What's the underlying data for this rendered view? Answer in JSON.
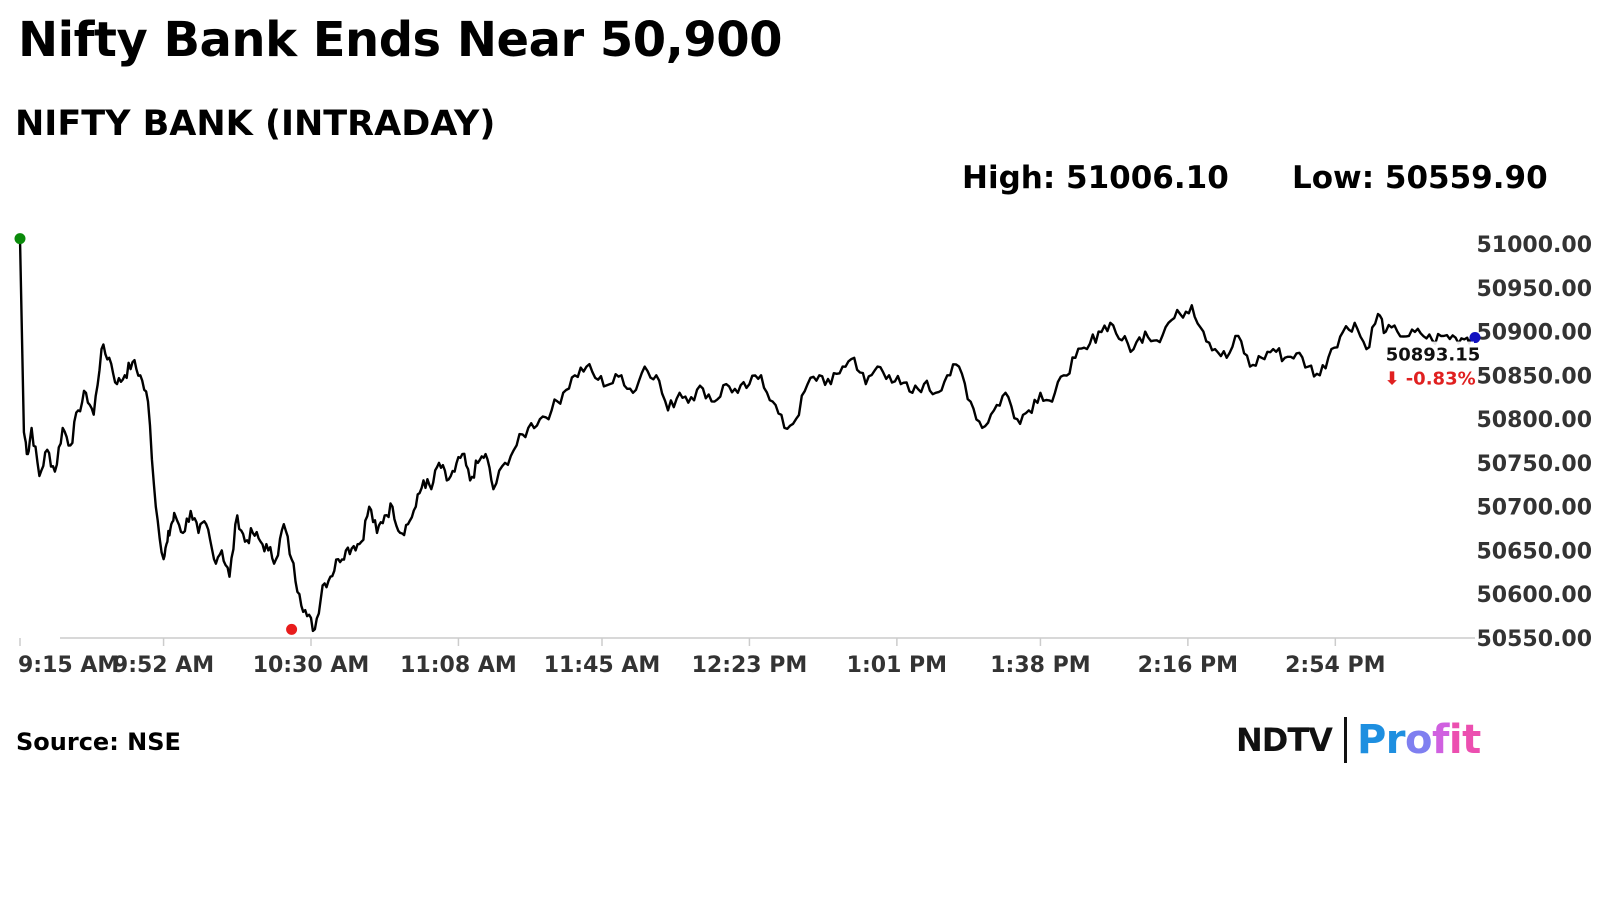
{
  "header": {
    "headline": "Nifty Bank Ends Near 50,900",
    "subtitle": "NIFTY BANK (INTRADAY)",
    "high_text": "High: 51006.10",
    "low_text": "Low: 50559.90"
  },
  "footer": {
    "source": "Source: NSE",
    "logo_ndtv": "NDTV",
    "logo_profit": "Profit"
  },
  "colors": {
    "line": "#000000",
    "high_marker": "#0a8a0a",
    "low_marker": "#e81c1c",
    "last_marker": "#1010c0",
    "change_text": "#e02020",
    "axis": "#cccccc"
  },
  "chart_data": {
    "type": "line",
    "title": "NIFTY BANK (INTRADAY)",
    "ylim": [
      50550,
      51000
    ],
    "y_ticks": [
      "51000.00",
      "50950.00",
      "50900.00",
      "50850.00",
      "50800.00",
      "50750.00",
      "50700.00",
      "50650.00",
      "50600.00",
      "50550.00"
    ],
    "x_ticks": [
      "9:15 AM",
      "9:52 AM",
      "10:30 AM",
      "11:08 AM",
      "11:45 AM",
      "12:23 PM",
      "1:01 PM",
      "1:38 PM",
      "2:16 PM",
      "2:54 PM"
    ],
    "x_tick_minutes": [
      555,
      592,
      630,
      668,
      705,
      743,
      781,
      818,
      856,
      894
    ],
    "xlim_minutes": [
      555,
      930
    ],
    "high": {
      "minute": 555,
      "value": 51006.1
    },
    "low": {
      "minute": 625,
      "value": 50559.9
    },
    "last": {
      "minute": 930,
      "value": 50893.15,
      "label": "50893.15",
      "change": "⬇ -0.83%"
    },
    "x": [
      555,
      556,
      557,
      558,
      560,
      562,
      564,
      566,
      568,
      570,
      572,
      574,
      576,
      578,
      580,
      582,
      584,
      586,
      588,
      590,
      592,
      593,
      594,
      595,
      597,
      599,
      601,
      603,
      605,
      607,
      609,
      611,
      613,
      615,
      617,
      619,
      621,
      623,
      625,
      627,
      629,
      631,
      633,
      635,
      637,
      639,
      641,
      643,
      645,
      647,
      649,
      651,
      653,
      655,
      657,
      659,
      661,
      663,
      665,
      667,
      669,
      671,
      673,
      675,
      677,
      680,
      683,
      686,
      689,
      692,
      695,
      698,
      701,
      704,
      707,
      710,
      713,
      716,
      719,
      722,
      725,
      728,
      731,
      734,
      737,
      740,
      743,
      746,
      749,
      752,
      755,
      758,
      761,
      764,
      767,
      770,
      773,
      776,
      779,
      782,
      785,
      788,
      791,
      794,
      797,
      800,
      803,
      806,
      809,
      812,
      815,
      818,
      821,
      824,
      827,
      830,
      833,
      836,
      839,
      842,
      845,
      848,
      851,
      854,
      857,
      860,
      863,
      866,
      869,
      872,
      875,
      878,
      881,
      884,
      887,
      890,
      893,
      896,
      899,
      902,
      905,
      907,
      910,
      913,
      916,
      919,
      922,
      925,
      928,
      930
    ],
    "values": [
      51006,
      50785,
      50760,
      50790,
      50735,
      50765,
      50740,
      50790,
      50770,
      50810,
      50830,
      50805,
      50880,
      50870,
      50840,
      50850,
      50865,
      50850,
      50820,
      50700,
      50640,
      50660,
      50680,
      50690,
      50670,
      50695,
      50670,
      50680,
      50640,
      50650,
      50620,
      50690,
      50660,
      50670,
      50660,
      50650,
      50640,
      50680,
      50640,
      50600,
      50575,
      50560,
      50610,
      50620,
      50640,
      50650,
      50655,
      50660,
      50700,
      50670,
      50690,
      50700,
      50670,
      50680,
      50700,
      50730,
      50720,
      50750,
      50730,
      50740,
      50760,
      50730,
      50750,
      50760,
      50720,
      50750,
      50770,
      50790,
      50800,
      50810,
      50830,
      50850,
      50860,
      50845,
      50840,
      50850,
      50830,
      50860,
      50850,
      50810,
      50830,
      50825,
      50835,
      50820,
      50840,
      50830,
      50840,
      50850,
      50820,
      50790,
      50800,
      50840,
      50850,
      50840,
      50860,
      50870,
      50840,
      50860,
      50850,
      50840,
      50830,
      50840,
      50830,
      50850,
      50860,
      50820,
      50790,
      50810,
      50830,
      50800,
      50810,
      50830,
      50820,
      50850,
      50870,
      50880,
      50900,
      50910,
      50890,
      50880,
      50900,
      50890,
      50910,
      50920,
      50930,
      50900,
      50880,
      50870,
      50895,
      50860,
      50870,
      50880,
      50870,
      50875,
      50860,
      50850,
      50880,
      50900,
      50910,
      50880,
      50920,
      50900,
      50900,
      50895,
      50898,
      50890,
      50895,
      50893,
      50893,
      50893
    ]
  }
}
